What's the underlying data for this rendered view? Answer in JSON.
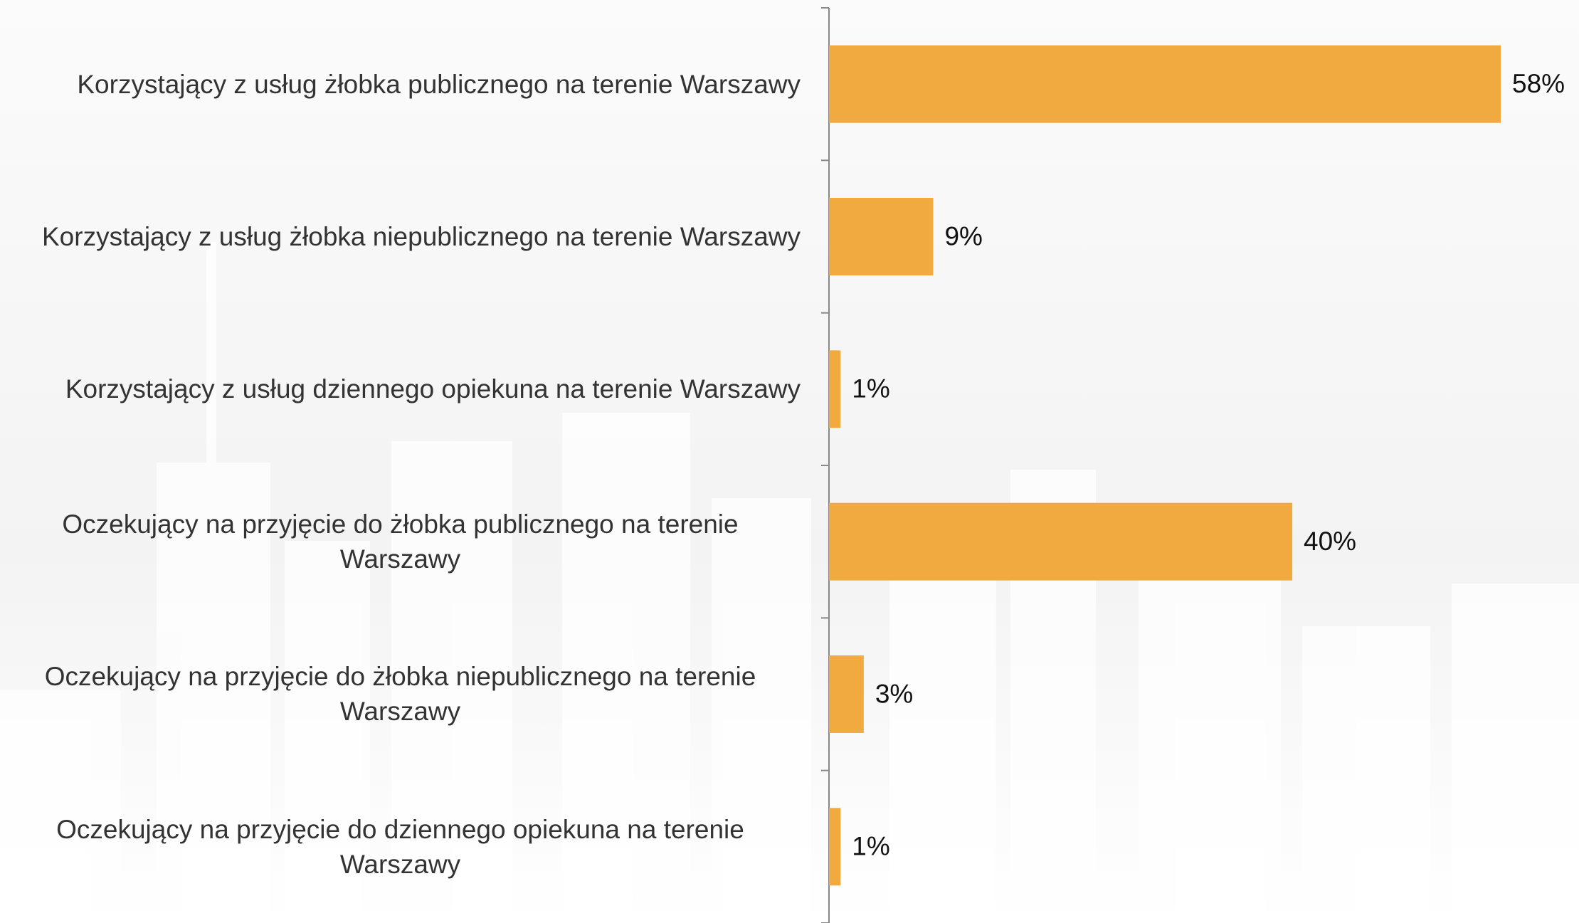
{
  "chart_data": {
    "type": "bar",
    "orientation": "horizontal",
    "categories": [
      "Korzystający z usług żłobka publicznego na terenie Warszawy",
      "Korzystający z usług żłobka niepublicznego na terenie Warszawy",
      "Korzystający z usług dziennego opiekuna na terenie Warszawy",
      "Oczekujący na przyjęcie do żłobka publicznego na terenie Warszawy",
      "Oczekujący na przyjęcie do żłobka niepublicznego na terenie Warszawy",
      "Oczekujący na przyjęcie do dziennego opiekuna na terenie Warszawy"
    ],
    "values": [
      58,
      9,
      1,
      40,
      3,
      1
    ],
    "value_labels": [
      "58%",
      "9%",
      "1%",
      "40%",
      "3%",
      "1%"
    ],
    "color": "#f0aa40"
  }
}
